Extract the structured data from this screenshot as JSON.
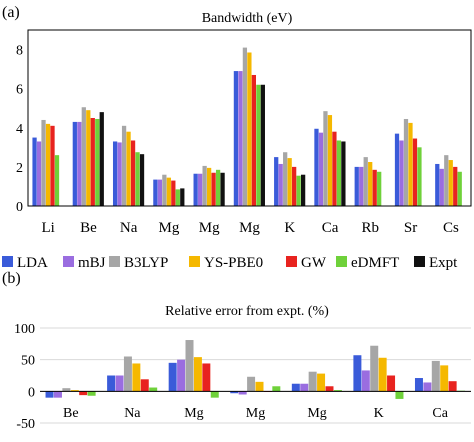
{
  "colors": {
    "LDA": "#3a5bd9",
    "mBJ": "#9a6de0",
    "B3LYP": "#a6a6a6",
    "YS-PBE0": "#f5b800",
    "GW": "#e8231f",
    "eDMFT": "#6fd13a",
    "Expt": "#111111"
  },
  "legend": [
    "LDA",
    "mBJ",
    "B3LYP",
    "YS-PBE0",
    "GW",
    "eDMFT",
    "Expt"
  ],
  "chart_data": [
    {
      "type": "bar",
      "panel_label": "(a)",
      "title": "Bandwidth (eV)",
      "categories": [
        "Li",
        "Be",
        "Na",
        "Mg",
        "Mg",
        "Mg",
        "K",
        "Ca",
        "Rb",
        "Sr",
        "Cs"
      ],
      "ylim": [
        0,
        9
      ],
      "yticks": [
        0,
        2,
        4,
        6,
        8
      ],
      "grid": false,
      "series": [
        {
          "name": "LDA",
          "values": [
            3.5,
            4.3,
            3.3,
            1.35,
            1.65,
            6.9,
            2.5,
            3.95,
            2.0,
            3.7,
            2.15
          ]
        },
        {
          "name": "mBJ",
          "values": [
            3.3,
            4.3,
            3.25,
            1.35,
            1.65,
            6.9,
            2.15,
            3.75,
            2.0,
            3.35,
            1.9
          ]
        },
        {
          "name": "B3LYP",
          "values": [
            4.4,
            5.05,
            4.1,
            1.6,
            2.05,
            8.1,
            2.75,
            4.85,
            2.5,
            4.45,
            2.6
          ]
        },
        {
          "name": "YS-PBE0",
          "values": [
            4.2,
            4.9,
            3.8,
            1.45,
            1.95,
            7.85,
            2.45,
            4.65,
            2.25,
            4.25,
            2.35
          ]
        },
        {
          "name": "GW",
          "values": [
            4.1,
            4.5,
            3.35,
            1.3,
            1.7,
            6.7,
            2.0,
            3.8,
            1.85,
            3.45,
            2.0
          ]
        },
        {
          "name": "eDMFT",
          "values": [
            2.6,
            4.45,
            2.75,
            0.85,
            1.85,
            6.2,
            1.55,
            3.35,
            1.75,
            3.0,
            1.75
          ]
        },
        {
          "name": "Expt",
          "values": [
            null,
            4.8,
            2.65,
            0.9,
            1.7,
            6.2,
            1.6,
            3.3,
            null,
            null,
            null
          ]
        }
      ]
    },
    {
      "type": "bar",
      "panel_label": "(b)",
      "title": "Relative error from expt. (%)",
      "categories": [
        "Be",
        "Na",
        "Mg",
        "Mg",
        "Mg",
        "K",
        "Ca"
      ],
      "ylim": [
        -50,
        100
      ],
      "yticks": [
        -50,
        0,
        50,
        100
      ],
      "grid": true,
      "series": [
        {
          "name": "LDA",
          "values": [
            -10,
            25,
            45,
            -3,
            12,
            57,
            21
          ]
        },
        {
          "name": "mBJ",
          "values": [
            -10,
            25,
            50,
            -5,
            12,
            33,
            14
          ]
        },
        {
          "name": "B3LYP",
          "values": [
            5,
            55,
            81,
            23,
            31,
            72,
            48
          ]
        },
        {
          "name": "YS-PBE0",
          "values": [
            2,
            44,
            54,
            15,
            28,
            53,
            41
          ]
        },
        {
          "name": "GW",
          "values": [
            -6,
            19,
            44,
            -1,
            8,
            25,
            16
          ]
        },
        {
          "name": "eDMFT",
          "values": [
            -7,
            6,
            -10,
            8,
            2,
            -12,
            1
          ]
        }
      ]
    }
  ]
}
